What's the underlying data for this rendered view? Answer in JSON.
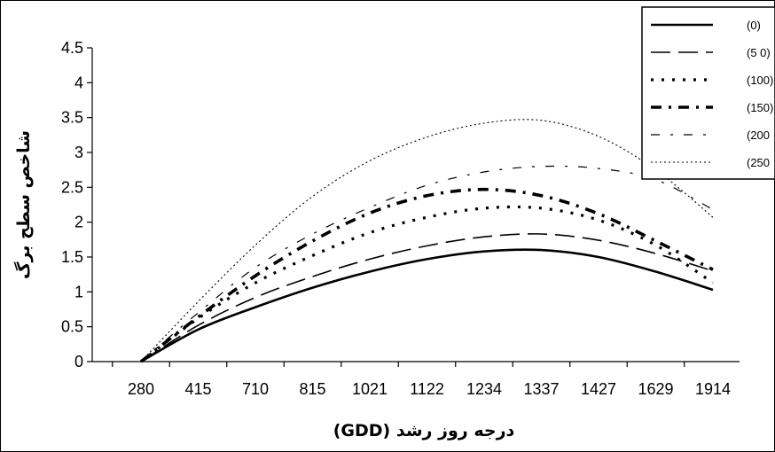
{
  "chart_data": {
    "type": "line",
    "xlabel": "درجه روز رشد (GDD)",
    "ylabel": "شاخص سطح برگ",
    "categories": [
      "280",
      "415",
      "710",
      "815",
      "1021",
      "1122",
      "1234",
      "1337",
      "1427",
      "1629",
      "1914"
    ],
    "yticks": [
      "0",
      "0.5",
      "1",
      "1.5",
      "2",
      "2.5",
      "3",
      "3.5",
      "4",
      "4.5"
    ],
    "ylim": [
      0,
      4.5
    ],
    "legend_position": "top-right",
    "grid": false,
    "series": [
      {
        "name": "(0)",
        "values": [
          0.0,
          0.46,
          0.78,
          1.06,
          1.29,
          1.47,
          1.58,
          1.6,
          1.5,
          1.29,
          1.03
        ]
      },
      {
        "name": "(5 0)",
        "values": [
          0.0,
          0.52,
          0.92,
          1.22,
          1.47,
          1.66,
          1.79,
          1.83,
          1.74,
          1.55,
          1.3
        ]
      },
      {
        "name": "(100)",
        "values": [
          0.0,
          0.62,
          1.13,
          1.52,
          1.85,
          2.07,
          2.2,
          2.2,
          2.03,
          1.67,
          1.13
        ]
      },
      {
        "name": "(150)",
        "values": [
          0.0,
          0.64,
          1.23,
          1.73,
          2.13,
          2.38,
          2.47,
          2.38,
          2.12,
          1.73,
          1.32
        ]
      },
      {
        "name": "(200",
        "values": [
          0.0,
          0.7,
          1.35,
          1.83,
          2.21,
          2.53,
          2.72,
          2.8,
          2.77,
          2.61,
          2.18
        ]
      },
      {
        "name": "(250",
        "values": [
          0.0,
          0.86,
          1.67,
          2.37,
          2.88,
          3.22,
          3.42,
          3.46,
          3.23,
          2.75,
          2.07
        ]
      }
    ]
  }
}
